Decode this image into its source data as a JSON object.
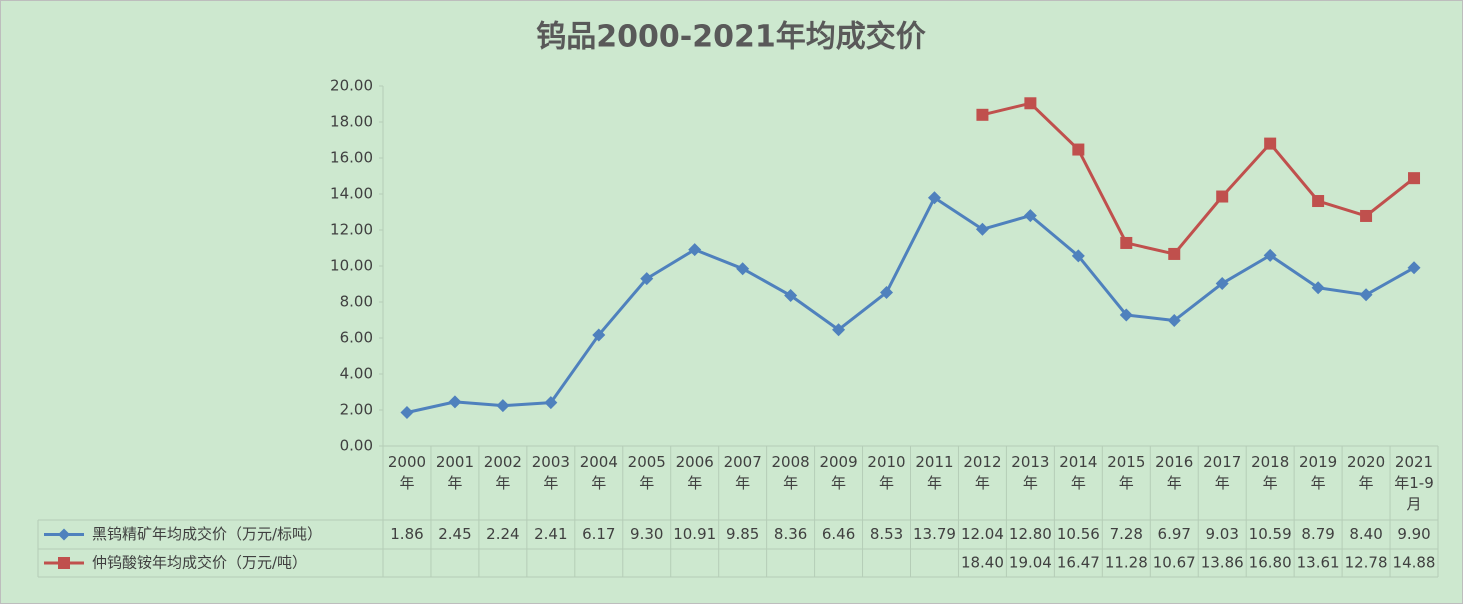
{
  "chart_data": {
    "type": "line",
    "title": "钨品2000-2021年均成交价",
    "categories": [
      "2000年",
      "2001年",
      "2002年",
      "2003年",
      "2004年",
      "2005年",
      "2006年",
      "2007年",
      "2008年",
      "2009年",
      "2010年",
      "2011年",
      "2012年",
      "2013年",
      "2014年",
      "2015年",
      "2016年",
      "2017年",
      "2018年",
      "2019年",
      "2020年",
      "2021年1-9月"
    ],
    "series": [
      {
        "name": "黑钨精矿年均成交价（万元/标吨）",
        "color": "#4f81bd",
        "marker": "diamond",
        "values": [
          1.86,
          2.45,
          2.24,
          2.41,
          6.17,
          9.3,
          10.91,
          9.85,
          8.36,
          6.46,
          8.53,
          13.79,
          12.04,
          12.8,
          10.56,
          7.28,
          6.97,
          9.03,
          10.59,
          8.79,
          8.4,
          9.9
        ],
        "value_labels": [
          "1.86",
          "2.45",
          "2.24",
          "2.41",
          "6.17",
          "9.30",
          "10.91",
          "9.85",
          "8.36",
          "6.46",
          "8.53",
          "13.79",
          "12.04",
          "12.80",
          "10.56",
          "7.28",
          "6.97",
          "9.03",
          "10.59",
          "8.79",
          "8.40",
          "9.90"
        ]
      },
      {
        "name": "仲钨酸铵年均成交价（万元/吨）",
        "color": "#c0504d",
        "marker": "square",
        "values": [
          null,
          null,
          null,
          null,
          null,
          null,
          null,
          null,
          null,
          null,
          null,
          null,
          18.4,
          19.04,
          16.47,
          11.28,
          10.67,
          13.86,
          16.8,
          13.61,
          12.78,
          14.88
        ],
        "value_labels": [
          null,
          null,
          null,
          null,
          null,
          null,
          null,
          null,
          null,
          null,
          null,
          null,
          "18.40",
          "19.04",
          "16.47",
          "11.28",
          "10.67",
          "13.86",
          "16.80",
          "13.61",
          "12.78",
          "14.88"
        ]
      }
    ],
    "ylim": [
      0,
      20
    ],
    "yticks": [
      {
        "value": 0,
        "label": "0.00"
      },
      {
        "value": 2,
        "label": "2.00"
      },
      {
        "value": 4,
        "label": "4.00"
      },
      {
        "value": 6,
        "label": "6.00"
      },
      {
        "value": 8,
        "label": "8.00"
      },
      {
        "value": 10,
        "label": "10.00"
      },
      {
        "value": 12,
        "label": "12.00"
      },
      {
        "value": 14,
        "label": "14.00"
      },
      {
        "value": 16,
        "label": "16.00"
      },
      {
        "value": 18,
        "label": "18.00"
      },
      {
        "value": 20,
        "label": "20.00"
      }
    ],
    "data_table": true
  }
}
